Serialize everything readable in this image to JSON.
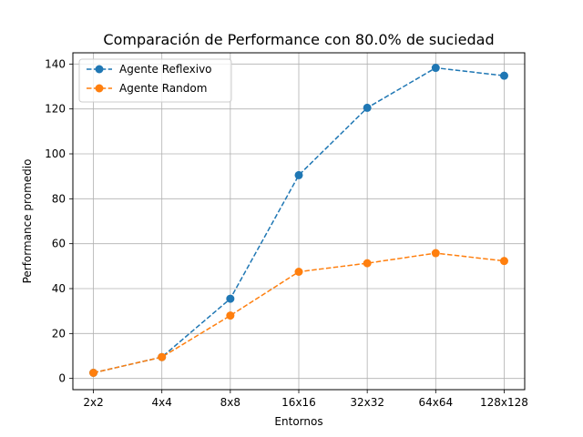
{
  "chart_data": {
    "type": "line",
    "title": "Comparación de Performance con 80.0% de suciedad",
    "xlabel": "Entornos",
    "ylabel": "Performance promedio",
    "categories": [
      "2x2",
      "4x4",
      "8x8",
      "16x16",
      "32x32",
      "64x64",
      "128x128"
    ],
    "ylim": [
      -5,
      145
    ],
    "yticks": [
      0,
      20,
      40,
      60,
      80,
      100,
      120,
      140
    ],
    "grid": true,
    "legend_position": "top-left",
    "series": [
      {
        "name": "Agente Reflexivo",
        "color": "#1f77b4",
        "line_style": "dashed",
        "marker": "circle",
        "values": [
          2.5,
          9.5,
          35.5,
          90.5,
          120.5,
          138.3,
          134.8
        ]
      },
      {
        "name": "Agente Random",
        "color": "#ff7f0e",
        "line_style": "dashed",
        "marker": "circle",
        "values": [
          2.5,
          9.5,
          28.0,
          47.5,
          51.3,
          55.8,
          52.3
        ]
      }
    ]
  }
}
